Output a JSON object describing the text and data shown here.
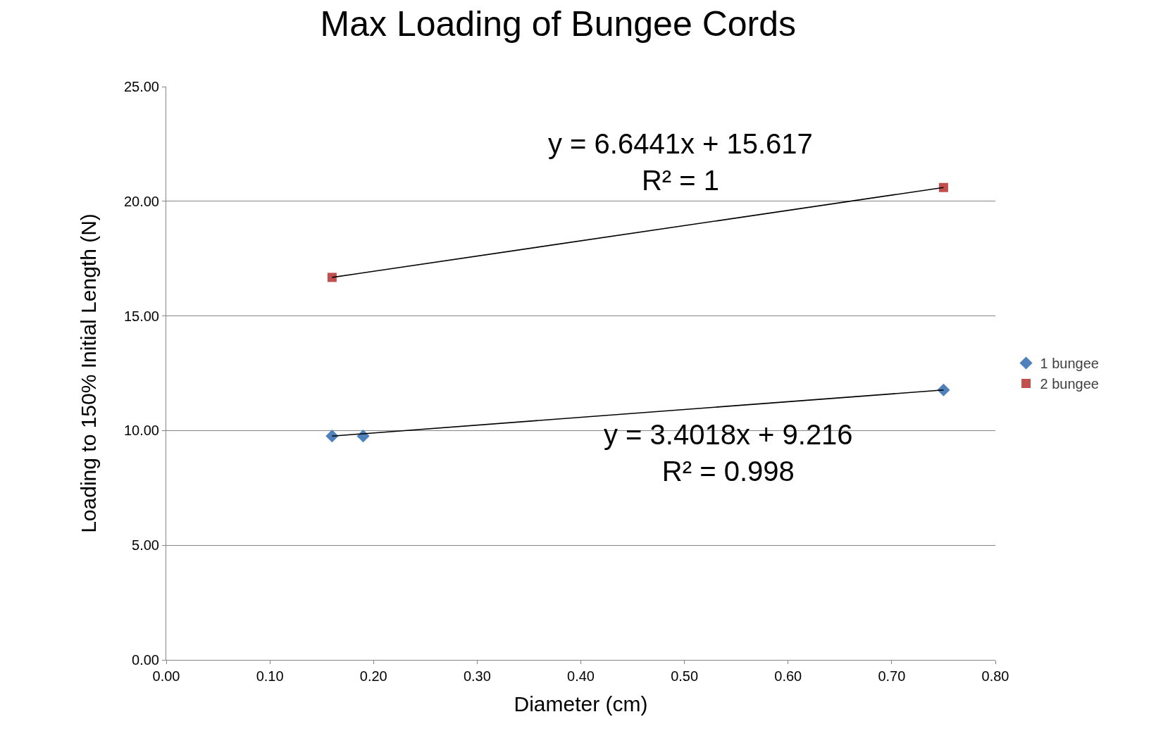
{
  "chart_data": {
    "type": "scatter",
    "title": "Max Loading of Bungee Cords",
    "xlabel": "Diameter (cm)",
    "ylabel": "Loading to 150% Initial Length (N)",
    "series": [
      {
        "name": "1 bungee",
        "color": "#4f81bd",
        "marker": "diamond",
        "x": [
          0.16,
          0.19,
          0.75
        ],
        "values": [
          9.76,
          9.76,
          11.77
        ]
      },
      {
        "name": "2 bungee",
        "color": "#c0504d",
        "marker": "square",
        "x": [
          0.16,
          0.75
        ],
        "values": [
          16.68,
          20.6
        ]
      },
      {
        "type": "line",
        "color": "#000000",
        "marker": "none",
        "x": [
          0.16,
          0.75
        ],
        "values": [
          9.76,
          11.77
        ]
      },
      {
        "type": "line",
        "color": "#000000",
        "marker": "none",
        "x": [
          0.16,
          0.75
        ],
        "values": [
          16.68,
          20.6
        ]
      }
    ],
    "annotations": [
      "y = 6.6441x + 15.617\nR² = 1",
      "y = 3.4018x + 9.216\nR² = 0.998"
    ],
    "xlim": [
      0,
      0.8
    ],
    "ylim": [
      0,
      25
    ],
    "xticks": [
      {
        "value": 0,
        "label": "0.00"
      },
      {
        "value": 0.1,
        "label": "0.10"
      },
      {
        "value": 0.2,
        "label": "0.20"
      },
      {
        "value": 0.3,
        "label": "0.30"
      },
      {
        "value": 0.4,
        "label": "0.40"
      },
      {
        "value": 0.5,
        "label": "0.50"
      },
      {
        "value": 0.6,
        "label": "0.60"
      },
      {
        "value": 0.7,
        "label": "0.70"
      },
      {
        "value": 0.8,
        "label": "0.80"
      }
    ],
    "yticks": [
      {
        "value": 0,
        "label": "0.00"
      },
      {
        "value": 5,
        "label": "5.00"
      },
      {
        "value": 10,
        "label": "10.00"
      },
      {
        "value": 15,
        "label": "15.00"
      },
      {
        "value": 20,
        "label": "20.00"
      },
      {
        "value": 25,
        "label": "25.00"
      }
    ],
    "grid": "y",
    "legend": "right"
  }
}
